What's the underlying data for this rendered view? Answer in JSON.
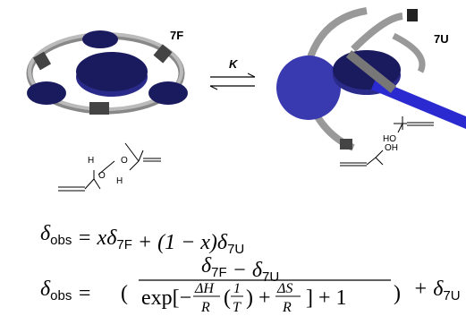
{
  "scheme": {
    "folded_label": "7F",
    "equilibrium_label": "K",
    "unfolded_label": "7U",
    "folded_fragment": [
      "H",
      "O",
      "H",
      "O"
    ],
    "unfolded_fragments": [
      "HO",
      "OH"
    ]
  },
  "equations": {
    "eq1": [
      {
        "text": "δ"
      },
      {
        "sub": "obs"
      },
      {
        "text": " = xδ"
      },
      {
        "sub": "7F"
      },
      {
        "text": " + (1 − x)δ"
      },
      {
        "sub": "7U"
      }
    ],
    "eq2": {
      "lhs": [
        {
          "text": "δ"
        },
        {
          "sub": "obs"
        },
        {
          "text": " = "
        }
      ],
      "numerator": [
        {
          "text": "δ"
        },
        {
          "sub": "7F"
        },
        {
          "text": " − δ"
        },
        {
          "sub": "7U"
        }
      ],
      "denominator": {
        "start": "exp[−",
        "dh": "ΔH",
        "r1": "R",
        "open": "(",
        "one": "1",
        "t": "T",
        "mid": ") +",
        "ds": "ΔS",
        "r2": "R",
        "end": "] + 1"
      },
      "tail": [
        {
          "text": "+ δ"
        },
        {
          "sub": "7U"
        }
      ]
    }
  }
}
